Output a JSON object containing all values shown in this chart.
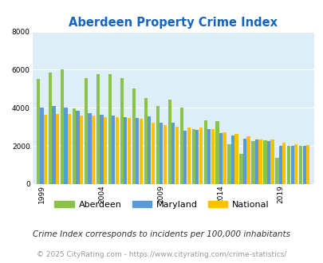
{
  "title": "Aberdeen Property Crime Index",
  "years": [
    1999,
    2000,
    2001,
    2002,
    2003,
    2004,
    2005,
    2006,
    2007,
    2008,
    2009,
    2010,
    2011,
    2012,
    2013,
    2014,
    2015,
    2016,
    2017,
    2018,
    2019,
    2020,
    2021
  ],
  "aberdeen": [
    5500,
    5850,
    6020,
    3980,
    5560,
    5760,
    5760,
    5560,
    5010,
    4500,
    4090,
    4430,
    4000,
    2900,
    3350,
    3300,
    2080,
    1580,
    2260,
    2300,
    1380,
    2010,
    1990
  ],
  "maryland": [
    4020,
    4100,
    4000,
    3850,
    3700,
    3650,
    3600,
    3500,
    3450,
    3540,
    3200,
    3200,
    2800,
    2850,
    2870,
    2670,
    2550,
    2400,
    2320,
    2250,
    2000,
    2020,
    2000
  ],
  "national": [
    3620,
    3680,
    3660,
    3580,
    3580,
    3530,
    3510,
    3480,
    3440,
    3230,
    3100,
    2990,
    2980,
    2970,
    2870,
    2700,
    2640,
    2490,
    2360,
    2350,
    2190,
    2100,
    2050
  ],
  "aberdeen_color": "#8bc34a",
  "maryland_color": "#5b9bd5",
  "national_color": "#ffc000",
  "bg_color": "#ddeef6",
  "title_color": "#1565c0",
  "ylim": [
    0,
    8000
  ],
  "yticks": [
    0,
    2000,
    4000,
    6000,
    8000
  ],
  "xlabel_ticks": [
    1999,
    2004,
    2009,
    2014,
    2019
  ],
  "footnote1": "Crime Index corresponds to incidents per 100,000 inhabitants",
  "footnote2": "© 2025 CityRating.com - https://www.cityrating.com/crime-statistics/",
  "legend_labels": [
    "Aberdeen",
    "Maryland",
    "National"
  ]
}
